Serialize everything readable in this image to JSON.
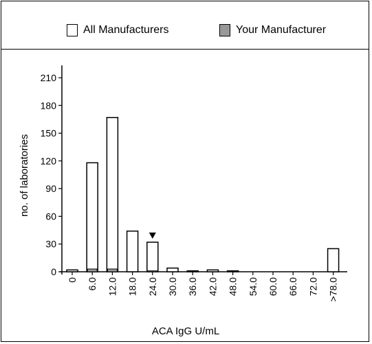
{
  "legend": {
    "all_label": "All Manufacturers",
    "yours_label": "Your Manufacturer",
    "all_color": "#ffffff",
    "yours_color": "#999999"
  },
  "chart_data": {
    "type": "bar",
    "stacked_overlay": true,
    "categories": [
      "0",
      "6.0",
      "12.0",
      "18.0",
      "24.0",
      "30.0",
      "36.0",
      "42.0",
      "48.0",
      "54.0",
      "60.0",
      "66.0",
      "72.0",
      ">78.0"
    ],
    "series": [
      {
        "name": "All Manufacturers",
        "values": [
          2,
          118,
          167,
          44,
          32,
          4,
          1,
          2,
          1,
          0,
          0,
          0,
          0,
          25
        ]
      },
      {
        "name": "Your Manufacturer",
        "values": [
          0,
          3,
          3,
          0,
          1,
          0,
          0,
          0,
          0,
          0,
          0,
          0,
          0,
          0
        ]
      }
    ],
    "marker_category": "24.0",
    "xlabel": "ACA IgG U/mL",
    "ylabel": "no. of laboratories",
    "ylim": [
      0,
      210
    ],
    "yticks": [
      0,
      30,
      60,
      90,
      120,
      150,
      180,
      210
    ],
    "grid": false,
    "legend_position": "top"
  }
}
